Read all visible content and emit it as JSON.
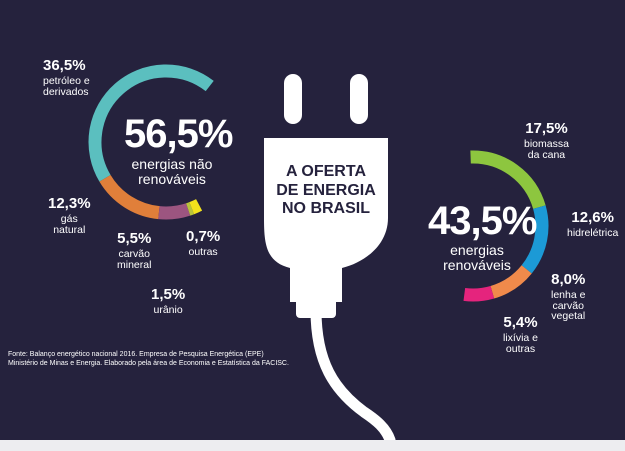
{
  "title": [
    "A OFERTA",
    "DE ENERGIA",
    "NO BRASIL"
  ],
  "source_lines": [
    "Fonte: Balanço energético nacional 2016. Empresa de Pesquisa Energética (EPE)",
    "Ministério de Minas e Energia. Elaborado pela área de Economia e Estatística da FACISC."
  ],
  "chart_data": [
    {
      "type": "pie",
      "variant": "partial-ring",
      "total_label": "56,5%",
      "total_text": [
        "energias não",
        "renováveis"
      ],
      "segments": [
        {
          "label": [
            "petróleo e",
            "derivados"
          ],
          "value": 36.5,
          "value_text": "36,5%",
          "color": "#5bbfbf"
        },
        {
          "label": [
            "gás",
            "natural"
          ],
          "value": 12.3,
          "value_text": "12,3%",
          "color": "#e07f3a"
        },
        {
          "label": [
            "carvão",
            "mineral"
          ],
          "value": 5.5,
          "value_text": "5,5%",
          "color": "#9c5580"
        },
        {
          "label": [
            "outras"
          ],
          "value": 0.7,
          "value_text": "0,7%",
          "color": "#b8c43a"
        },
        {
          "label": [
            "urânio"
          ],
          "value": 1.5,
          "value_text": "1,5%",
          "color": "#f2e21c"
        }
      ]
    },
    {
      "type": "pie",
      "variant": "partial-ring",
      "total_label": "43,5%",
      "total_text": [
        "energias",
        "renováveis"
      ],
      "segments": [
        {
          "label": [
            "biomassa",
            "da cana"
          ],
          "value": 17.5,
          "value_text": "17,5%",
          "color": "#8dc63f"
        },
        {
          "label": [
            "hidrelétrica"
          ],
          "value": 12.6,
          "value_text": "12,6%",
          "color": "#1c9ad6"
        },
        {
          "label": [
            "lenha e",
            "carvão",
            "vegetal"
          ],
          "value": 8.0,
          "value_text": "8,0%",
          "color": "#f08a4b"
        },
        {
          "label": [
            "lixívia e",
            "outras"
          ],
          "value": 5.4,
          "value_text": "5,4%",
          "color": "#e5247d"
        }
      ]
    }
  ]
}
